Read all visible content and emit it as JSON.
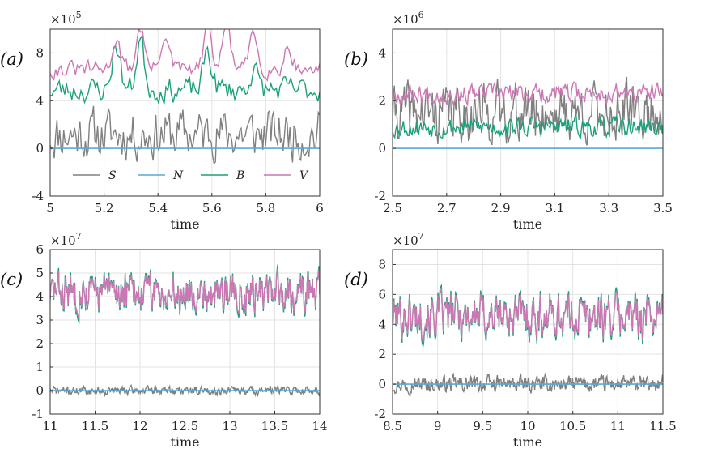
{
  "colors": {
    "S": "#808080",
    "N": "#5aa9d6",
    "B": "#1aa07a",
    "V": "#cc77b3",
    "grid": "#e3e3e3",
    "axis": "#333333"
  },
  "legend": [
    {
      "key": "S",
      "label": "S"
    },
    {
      "key": "N",
      "label": "N"
    },
    {
      "key": "B",
      "label": "B"
    },
    {
      "key": "V",
      "label": "V"
    }
  ],
  "chart_data": [
    {
      "type": "line",
      "panel_label": "(a)",
      "xlabel": "time",
      "multiplier_base": "×10",
      "multiplier_exp": "5",
      "xlim": [
        5,
        6
      ],
      "ylim": [
        -4,
        10
      ],
      "xticks": [
        5,
        5.2,
        5.4,
        5.6,
        5.8,
        6
      ],
      "xtick_labels": [
        "5",
        "5.2",
        "5.4",
        "5.6",
        "5.8",
        "6"
      ],
      "yticks": [
        -4,
        0,
        4,
        8
      ],
      "ytick_labels": [
        "-4",
        "0",
        "4",
        "8"
      ],
      "legend_location": "lower-center",
      "series": [
        {
          "name": "S",
          "mean": 1.2,
          "amp": 1.8,
          "seed": 11,
          "points": 200,
          "hi": 4.5,
          "lo": -1.3
        },
        {
          "name": "N",
          "mean": 0.0,
          "amp": 0.0,
          "seed": 2,
          "points": 2
        },
        {
          "name": "B",
          "mean": 4.9,
          "amp": 0.9,
          "seed": 23,
          "points": 150,
          "peaks": [
            [
              5.24,
              7.4
            ],
            [
              5.33,
              7.6
            ],
            [
              5.58,
              7.0
            ],
            [
              5.75,
              6.0
            ]
          ]
        },
        {
          "name": "V",
          "mean": 6.6,
          "amp": 0.6,
          "seed": 31,
          "points": 150,
          "peaks": [
            [
              5.24,
              8.3
            ],
            [
              5.33,
              8.9
            ],
            [
              5.42,
              8.5
            ],
            [
              5.58,
              8.8
            ],
            [
              5.65,
              9.0
            ],
            [
              5.75,
              8.6
            ],
            [
              5.88,
              7.9
            ]
          ]
        }
      ]
    },
    {
      "type": "line",
      "panel_label": "(b)",
      "xlabel": "time",
      "multiplier_base": "×10",
      "multiplier_exp": "6",
      "xlim": [
        2.5,
        3.5
      ],
      "ylim": [
        -2,
        5
      ],
      "xticks": [
        2.5,
        2.7,
        2.9,
        3.1,
        3.3,
        3.5
      ],
      "xtick_labels": [
        "2.5",
        "2.7",
        "2.9",
        "3.1",
        "3.3",
        "3.5"
      ],
      "yticks": [
        -2,
        0,
        2,
        4
      ],
      "ytick_labels": [
        "-2",
        "0",
        "2",
        "4"
      ],
      "series": [
        {
          "name": "S",
          "mean": 1.5,
          "amp": 1.0,
          "seed": 41,
          "points": 300,
          "hi": 4.5,
          "lo": -1.5
        },
        {
          "name": "N",
          "mean": 0.0,
          "amp": 0.0,
          "seed": 2,
          "points": 2
        },
        {
          "name": "B",
          "mean": 0.9,
          "amp": 0.35,
          "seed": 53,
          "points": 250
        },
        {
          "name": "V",
          "mean": 2.3,
          "amp": 0.35,
          "seed": 67,
          "points": 250
        }
      ]
    },
    {
      "type": "line",
      "panel_label": "(c)",
      "xlabel": "time",
      "multiplier_base": "×10",
      "multiplier_exp": "7",
      "xlim": [
        11,
        14
      ],
      "ylim": [
        -1,
        6
      ],
      "xticks": [
        11,
        11.5,
        12,
        12.5,
        13,
        13.5,
        14
      ],
      "xtick_labels": [
        "11",
        "11.5",
        "12",
        "12.5",
        "13",
        "13.5",
        "14"
      ],
      "yticks": [
        -1,
        0,
        1,
        2,
        3,
        4,
        5,
        6
      ],
      "ytick_labels": [
        "-1",
        "0",
        "1",
        "2",
        "3",
        "4",
        "5",
        "6"
      ],
      "series": [
        {
          "name": "S",
          "mean": 0.0,
          "amp": 0.15,
          "seed": 71,
          "points": 450
        },
        {
          "name": "N",
          "mean": 0.0,
          "amp": 0.0,
          "seed": 2,
          "points": 2
        },
        {
          "name": "B",
          "mean": 4.2,
          "amp": 0.75,
          "seed": 83,
          "points": 450,
          "hi": 5.7,
          "lo": 2.6
        },
        {
          "name": "V",
          "mean": 4.2,
          "amp": 0.65,
          "seed": 83,
          "points": 450,
          "hi": 5.5,
          "lo": 2.7
        }
      ]
    },
    {
      "type": "line",
      "panel_label": "(d)",
      "xlabel": "time",
      "multiplier_base": "×10",
      "multiplier_exp": "7",
      "xlim": [
        8.5,
        11.5
      ],
      "ylim": [
        -2,
        9
      ],
      "xticks": [
        8.5,
        9,
        9.5,
        10,
        10.5,
        11,
        11.5
      ],
      "xtick_labels": [
        "8.5",
        "9",
        "9.5",
        "10",
        "10.5",
        "11",
        "11.5"
      ],
      "yticks": [
        -2,
        0,
        2,
        4,
        6,
        8
      ],
      "ytick_labels": [
        "-2",
        "0",
        "2",
        "4",
        "6",
        "8"
      ],
      "series": [
        {
          "name": "S",
          "mean": 0.0,
          "amp": 0.45,
          "seed": 97,
          "points": 450,
          "hi": 1.8,
          "lo": -1.9
        },
        {
          "name": "N",
          "mean": 0.0,
          "amp": 0.0,
          "seed": 2,
          "points": 2
        },
        {
          "name": "B",
          "mean": 4.6,
          "amp": 1.4,
          "seed": 101,
          "points": 400,
          "hi": 8.1,
          "lo": 1.4
        },
        {
          "name": "V",
          "mean": 4.6,
          "amp": 1.2,
          "seed": 101,
          "points": 400,
          "hi": 7.4,
          "lo": 1.8
        }
      ]
    }
  ]
}
